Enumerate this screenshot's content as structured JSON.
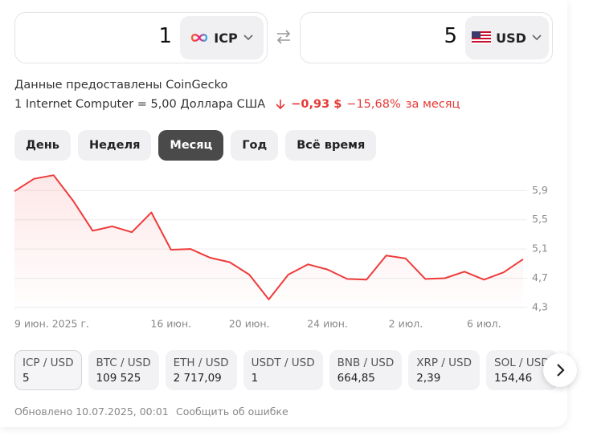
{
  "converter": {
    "from": {
      "amount": "1",
      "currency": "ICP"
    },
    "to": {
      "amount": "5",
      "currency": "USD"
    }
  },
  "source": "Данные предоставлены CoinGecko",
  "rate": {
    "text": "1 Internet Computer = 5,00 Доллара США",
    "change": "−0,93 $",
    "percent": "−15,68%",
    "period": "за месяц"
  },
  "tabs": {
    "items": [
      "День",
      "Неделя",
      "Месяц",
      "Год",
      "Всё время"
    ],
    "active": 2
  },
  "chart_data": {
    "type": "line",
    "categories": [
      "9 июн. 2025 г.",
      null,
      null,
      null,
      null,
      null,
      null,
      null,
      "16 июн.",
      null,
      null,
      null,
      "20 июн.",
      null,
      null,
      null,
      "24 июн.",
      null,
      null,
      null,
      "2 июл.",
      null,
      null,
      null,
      "6 июл.",
      null,
      null
    ],
    "values": [
      5.89,
      6.06,
      6.11,
      5.76,
      5.35,
      5.41,
      5.33,
      5.6,
      5.09,
      5.1,
      4.98,
      4.92,
      4.75,
      4.41,
      4.75,
      4.89,
      4.82,
      4.69,
      4.68,
      5.01,
      4.97,
      4.69,
      4.7,
      4.79,
      4.68,
      4.78,
      4.96
    ],
    "color": "#ef3b3b",
    "ylim": [
      4.2,
      6.2
    ],
    "yticks": [
      {
        "value": 5.9,
        "label": "5,9"
      },
      {
        "value": 5.5,
        "label": "5,5"
      },
      {
        "value": 5.1,
        "label": "5,1"
      },
      {
        "value": 4.7,
        "label": "4,7"
      },
      {
        "value": 4.3,
        "label": "4,3"
      }
    ],
    "grid": true
  },
  "tickers": {
    "items": [
      {
        "pair": "ICP / USD",
        "price": "5"
      },
      {
        "pair": "BTC / USD",
        "price": "109 525"
      },
      {
        "pair": "ETH / USD",
        "price": "2 717,09"
      },
      {
        "pair": "USDT / USD",
        "price": "1"
      },
      {
        "pair": "BNB / USD",
        "price": "664,85"
      },
      {
        "pair": "XRP / USD",
        "price": "2,39"
      },
      {
        "pair": "SOL / USD",
        "price": "154,46"
      }
    ],
    "active": 0
  },
  "footer": {
    "updated": "Обновлено 10.07.2025, 00:01",
    "report": "Сообщить об ошибке"
  }
}
